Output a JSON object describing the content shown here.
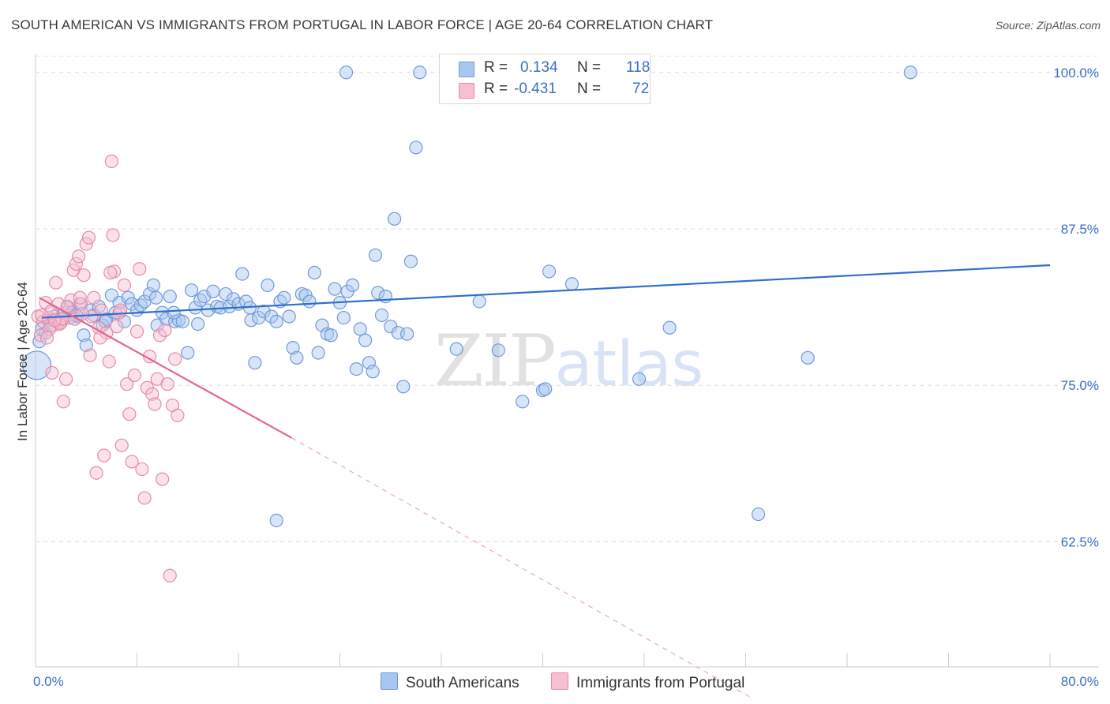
{
  "title": "SOUTH AMERICAN VS IMMIGRANTS FROM PORTUGAL IN LABOR FORCE | AGE 20-64 CORRELATION CHART",
  "source": "Source: ZipAtlas.com",
  "watermark": {
    "zip": "ZIP",
    "atlas": "atlas"
  },
  "legend": {
    "rows": [
      {
        "r_label": "R =",
        "r_value": "0.134",
        "n_label": "N =",
        "n_value": "118",
        "color": "#a9c6f0",
        "stroke": "#6f9ad8"
      },
      {
        "r_label": "R =",
        "r_value": "-0.431",
        "n_label": "N =",
        "n_value": "72",
        "color": "#f7bfd0",
        "stroke": "#e78aa9"
      }
    ]
  },
  "bottom_legend": [
    {
      "label": "South Americans",
      "color": "#a9c6f0",
      "stroke": "#6f9ad8"
    },
    {
      "label": "Immigrants from Portugal",
      "color": "#f7bfd0",
      "stroke": "#e78aa9"
    }
  ],
  "chart_data": {
    "type": "scatter",
    "title": "SOUTH AMERICAN VS IMMIGRANTS FROM PORTUGAL IN LABOR FORCE | AGE 20-64 CORRELATION CHART",
    "xlabel": "",
    "ylabel": "In Labor Force | Age 20-64",
    "xlim": [
      0,
      80
    ],
    "ylim": [
      52.5,
      101.5
    ],
    "x_tick_labels": [
      "0.0%",
      "80.0%"
    ],
    "y_ticks": [
      62.5,
      75.0,
      87.5,
      100.0
    ],
    "y_tick_labels": [
      "62.5%",
      "75.0%",
      "87.5%",
      "100.0%"
    ],
    "grid": true,
    "series": [
      {
        "name": "South Americans",
        "color": "#6f9ad8",
        "fill": "#a9c6f0",
        "trend": {
          "x": [
            0.5,
            80
          ],
          "y": [
            80.4,
            84.6
          ],
          "dashed_to": null
        },
        "points": [
          [
            0.1,
            76.6
          ],
          [
            0.3,
            78.5
          ],
          [
            0.5,
            79.5
          ],
          [
            0.8,
            79.2
          ],
          [
            1.0,
            80.2
          ],
          [
            1.2,
            79.8
          ],
          [
            1.5,
            80.5
          ],
          [
            1.8,
            80.0
          ],
          [
            2.0,
            80.3
          ],
          [
            2.3,
            80.8
          ],
          [
            2.5,
            81.2
          ],
          [
            2.7,
            80.4
          ],
          [
            3.0,
            80.9
          ],
          [
            3.3,
            80.5
          ],
          [
            3.5,
            81.5
          ],
          [
            3.8,
            79.0
          ],
          [
            4.0,
            78.2
          ],
          [
            4.3,
            81.0
          ],
          [
            4.6,
            80.6
          ],
          [
            5.0,
            81.3
          ],
          [
            5.3,
            79.8
          ],
          [
            5.6,
            80.3
          ],
          [
            6.0,
            82.2
          ],
          [
            6.3,
            80.8
          ],
          [
            6.6,
            81.6
          ],
          [
            7.0,
            80.1
          ],
          [
            7.3,
            82.0
          ],
          [
            7.6,
            81.5
          ],
          [
            8.0,
            81.0
          ],
          [
            8.3,
            81.4
          ],
          [
            8.6,
            81.7
          ],
          [
            9.0,
            82.3
          ],
          [
            9.3,
            83.0
          ],
          [
            9.6,
            79.8
          ],
          [
            10.0,
            80.8
          ],
          [
            10.3,
            80.3
          ],
          [
            10.6,
            82.1
          ],
          [
            11.0,
            80.1
          ],
          [
            11.3,
            80.2
          ],
          [
            11.6,
            80.1
          ],
          [
            12.0,
            77.6
          ],
          [
            12.3,
            82.6
          ],
          [
            12.6,
            81.2
          ],
          [
            13.0,
            81.8
          ],
          [
            13.3,
            82.1
          ],
          [
            13.6,
            81.0
          ],
          [
            14.0,
            82.5
          ],
          [
            14.3,
            81.3
          ],
          [
            14.6,
            81.2
          ],
          [
            15.0,
            82.3
          ],
          [
            15.3,
            81.3
          ],
          [
            15.6,
            81.9
          ],
          [
            16.0,
            81.5
          ],
          [
            16.3,
            83.9
          ],
          [
            16.6,
            81.7
          ],
          [
            17.0,
            80.2
          ],
          [
            17.3,
            76.8
          ],
          [
            17.6,
            80.4
          ],
          [
            18.0,
            80.9
          ],
          [
            18.3,
            83.0
          ],
          [
            18.6,
            80.5
          ],
          [
            19.0,
            80.1
          ],
          [
            19.3,
            81.7
          ],
          [
            19.6,
            82.0
          ],
          [
            20.0,
            80.5
          ],
          [
            20.3,
            78.0
          ],
          [
            20.6,
            77.2
          ],
          [
            21.0,
            82.3
          ],
          [
            21.3,
            82.2
          ],
          [
            21.6,
            81.7
          ],
          [
            22.0,
            84.0
          ],
          [
            22.3,
            77.6
          ],
          [
            22.6,
            79.8
          ],
          [
            23.0,
            79.1
          ],
          [
            23.3,
            79.0
          ],
          [
            23.6,
            82.7
          ],
          [
            24.0,
            81.6
          ],
          [
            24.3,
            80.4
          ],
          [
            24.6,
            82.5
          ],
          [
            25.0,
            83.0
          ],
          [
            25.3,
            76.3
          ],
          [
            25.6,
            79.5
          ],
          [
            26.0,
            78.6
          ],
          [
            26.3,
            76.8
          ],
          [
            26.6,
            76.1
          ],
          [
            27.0,
            82.4
          ],
          [
            27.3,
            80.6
          ],
          [
            27.6,
            82.1
          ],
          [
            28.0,
            79.7
          ],
          [
            28.3,
            88.3
          ],
          [
            28.6,
            79.2
          ],
          [
            29.0,
            74.9
          ],
          [
            29.3,
            79.1
          ],
          [
            29.6,
            84.9
          ],
          [
            30.0,
            94.0
          ],
          [
            30.3,
            100.0
          ],
          [
            33.2,
            77.9
          ],
          [
            35.0,
            81.7
          ],
          [
            36.5,
            77.8
          ],
          [
            38.4,
            73.7
          ],
          [
            40.0,
            74.6
          ],
          [
            40.5,
            84.1
          ],
          [
            42.3,
            83.1
          ],
          [
            47.6,
            75.5
          ],
          [
            50.0,
            79.6
          ],
          [
            57.0,
            64.7
          ],
          [
            60.9,
            77.2
          ],
          [
            69.0,
            100.0
          ],
          [
            24.5,
            100.0
          ],
          [
            19.0,
            64.2
          ],
          [
            26.8,
            85.4
          ],
          [
            9.5,
            82.0
          ],
          [
            10.9,
            80.8
          ],
          [
            5.5,
            80.1
          ],
          [
            12.8,
            79.9
          ],
          [
            16.9,
            81.2
          ],
          [
            3.2,
            80.6
          ],
          [
            40.2,
            74.7
          ]
        ]
      },
      {
        "name": "Immigrants from Portugal",
        "color": "#e78aa9",
        "fill": "#f7bfd0",
        "trend": {
          "x": [
            0.3,
            20.2
          ],
          "y": [
            82.0,
            70.8
          ],
          "dashed_to": [
            56.5,
            50.0
          ]
        },
        "points": [
          [
            0.2,
            80.5
          ],
          [
            0.4,
            79.0
          ],
          [
            0.6,
            80.1
          ],
          [
            0.8,
            81.6
          ],
          [
            1.0,
            80.4
          ],
          [
            1.2,
            80.9
          ],
          [
            1.4,
            79.8
          ],
          [
            1.6,
            83.2
          ],
          [
            1.8,
            81.5
          ],
          [
            2.0,
            80.0
          ],
          [
            2.2,
            73.7
          ],
          [
            2.4,
            75.5
          ],
          [
            2.6,
            80.6
          ],
          [
            2.8,
            81.8
          ],
          [
            3.0,
            84.2
          ],
          [
            3.2,
            84.7
          ],
          [
            3.4,
            85.3
          ],
          [
            3.6,
            81.5
          ],
          [
            3.8,
            83.8
          ],
          [
            4.0,
            86.3
          ],
          [
            4.2,
            86.8
          ],
          [
            4.4,
            80.5
          ],
          [
            4.6,
            82.0
          ],
          [
            4.8,
            68.0
          ],
          [
            5.0,
            79.6
          ],
          [
            5.2,
            81.0
          ],
          [
            5.4,
            69.4
          ],
          [
            5.6,
            79.2
          ],
          [
            5.8,
            76.9
          ],
          [
            6.0,
            92.9
          ],
          [
            6.2,
            84.1
          ],
          [
            6.4,
            79.7
          ],
          [
            6.6,
            80.8
          ],
          [
            6.8,
            70.2
          ],
          [
            7.0,
            83.0
          ],
          [
            7.2,
            75.1
          ],
          [
            7.4,
            72.7
          ],
          [
            7.6,
            68.9
          ],
          [
            7.8,
            75.8
          ],
          [
            8.0,
            79.3
          ],
          [
            8.2,
            84.3
          ],
          [
            8.4,
            68.3
          ],
          [
            8.6,
            66.0
          ],
          [
            8.8,
            74.8
          ],
          [
            9.0,
            77.3
          ],
          [
            9.2,
            74.3
          ],
          [
            9.4,
            73.5
          ],
          [
            9.6,
            75.5
          ],
          [
            9.8,
            79.0
          ],
          [
            10.0,
            67.5
          ],
          [
            10.2,
            79.4
          ],
          [
            10.4,
            75.1
          ],
          [
            10.6,
            59.8
          ],
          [
            10.8,
            73.4
          ],
          [
            11.0,
            77.1
          ],
          [
            11.2,
            72.6
          ],
          [
            0.5,
            80.6
          ],
          [
            1.1,
            79.5
          ],
          [
            1.9,
            79.9
          ],
          [
            2.5,
            81.3
          ],
          [
            3.1,
            80.3
          ],
          [
            3.7,
            80.7
          ],
          [
            4.3,
            77.4
          ],
          [
            5.1,
            78.8
          ],
          [
            5.9,
            84.0
          ],
          [
            6.7,
            81.0
          ],
          [
            1.3,
            76.0
          ],
          [
            0.9,
            78.8
          ],
          [
            2.1,
            80.3
          ],
          [
            3.5,
            82.0
          ],
          [
            6.1,
            87.0
          ],
          [
            1.5,
            80.2
          ]
        ]
      }
    ]
  }
}
